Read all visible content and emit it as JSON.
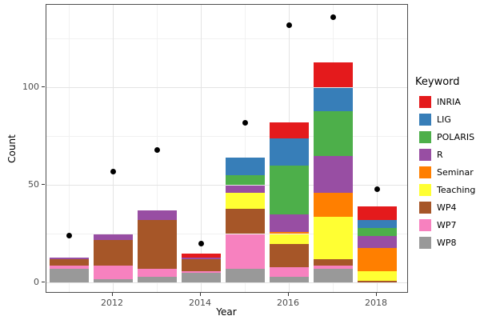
{
  "chart_data": {
    "type": "bar",
    "subtype": "stacked-bars-with-scatter-points",
    "title": "",
    "xlabel": "Year",
    "ylabel": "Count",
    "legend_title": "Keyword",
    "legend_position": "right",
    "grid": true,
    "years": [
      2011,
      2012,
      2013,
      2014,
      2015,
      2016,
      2017,
      2018
    ],
    "series": [
      {
        "name": "INRIA",
        "color": "#E41A1C",
        "values": [
          0,
          0,
          0,
          2,
          0,
          8,
          13,
          7
        ]
      },
      {
        "name": "LIG",
        "color": "#377EB8",
        "values": [
          0,
          0,
          0,
          0,
          9,
          14,
          12,
          4
        ]
      },
      {
        "name": "POLARIS",
        "color": "#4DAF4A",
        "values": [
          0,
          0,
          0,
          0,
          5,
          25,
          23,
          4
        ]
      },
      {
        "name": "R",
        "color": "#984EA3",
        "values": [
          1,
          3,
          5,
          1,
          4,
          9,
          19,
          6
        ]
      },
      {
        "name": "Seminar",
        "color": "#FF7F00",
        "values": [
          0,
          0,
          0,
          0,
          0,
          1,
          12,
          12
        ]
      },
      {
        "name": "Teaching",
        "color": "#FFFF33",
        "values": [
          0,
          0,
          0,
          0,
          8,
          5,
          22,
          5
        ]
      },
      {
        "name": "WP4",
        "color": "#A65628",
        "values": [
          3,
          13,
          25,
          6,
          13,
          12,
          3,
          1
        ]
      },
      {
        "name": "WP7",
        "color": "#F781BF",
        "values": [
          2,
          7,
          4,
          1,
          18,
          5,
          2,
          0
        ]
      },
      {
        "name": "WP8",
        "color": "#999999",
        "values": [
          7,
          2,
          3,
          5,
          7,
          3,
          7,
          0
        ]
      }
    ],
    "stack_totals": [
      13,
      25,
      37,
      15,
      64,
      82,
      113,
      39
    ],
    "points": {
      "name": "black-dots",
      "color": "#000000",
      "values": [
        24,
        57,
        68,
        20,
        82,
        132,
        136,
        48
      ]
    },
    "x_ticks": [
      2012,
      2014,
      2016,
      2018
    ],
    "x_minor": [
      2011,
      2013,
      2015,
      2017
    ],
    "y_ticks": [
      0,
      50,
      100
    ],
    "y_minor": [
      25,
      75,
      125
    ],
    "ylim": [
      0,
      142
    ],
    "style": {
      "panel_background": "#FFFFFF",
      "panel_border": "#4D4D4D",
      "grid_major": "#E4E4E4",
      "grid_minor": "#F1F1F1",
      "tick_color": "#333333",
      "tick_text_color": "#4D4D4D",
      "axis_title_color": "#000000"
    }
  }
}
